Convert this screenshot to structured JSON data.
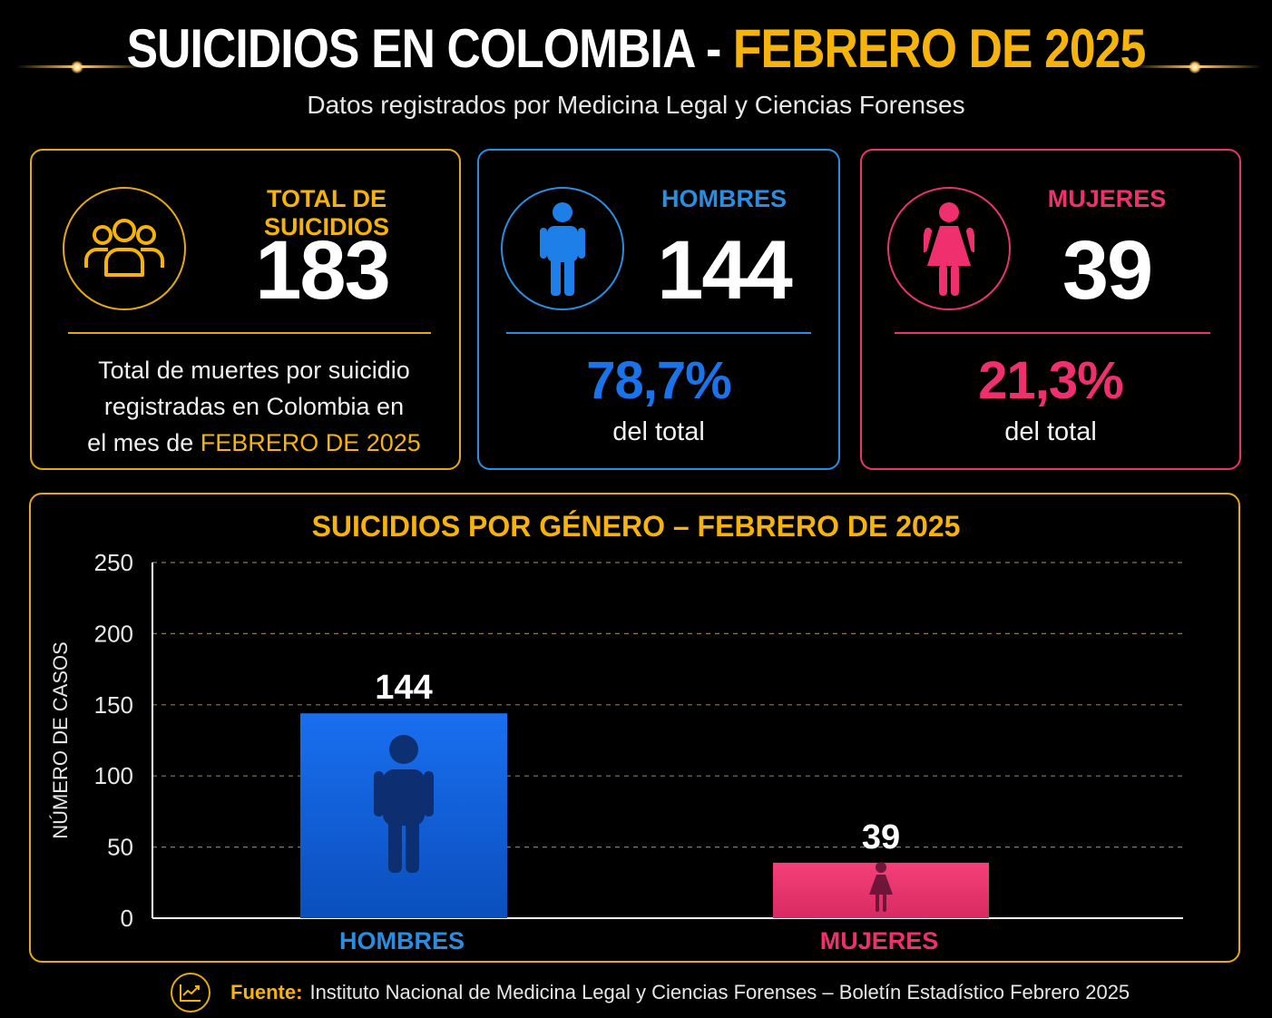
{
  "header": {
    "title_main": "SUICIDIOS EN COLOMBIA - ",
    "title_highlight": "FEBRERO DE 2025",
    "subtitle": "Datos registrados por Medicina Legal y Ciencias Forenses"
  },
  "cards": {
    "total": {
      "label": "TOTAL DE SUICIDIOS",
      "value": "183",
      "desc_line1": "Total de muertes por suicidio",
      "desc_line2": "registradas en Colombia en",
      "desc_line3_prefix": "el mes de ",
      "desc_line3_highlight": "FEBRERO DE 2025",
      "icon": "group-people-icon"
    },
    "men": {
      "label": "HOMBRES",
      "value": "144",
      "percent": "78,7%",
      "of_total": "del total",
      "icon": "man-icon"
    },
    "women": {
      "label": "MUJERES",
      "value": "39",
      "percent": "21,3%",
      "of_total": "del total",
      "icon": "woman-icon"
    }
  },
  "chart_data": {
    "type": "bar",
    "title": "SUICIDIOS POR GÉNERO – FEBRERO DE 2025",
    "categories": [
      "HOMBRES",
      "MUJERES"
    ],
    "values": [
      144,
      39
    ],
    "data_labels": [
      "144",
      "39"
    ],
    "ylabel": "NÚMERO DE CASOS",
    "xlabel": "",
    "ylim": [
      0,
      250
    ],
    "yticks": [
      0,
      50,
      100,
      150,
      200,
      250
    ],
    "grid": true,
    "colors": [
      "#1466e0",
      "#f0306e"
    ]
  },
  "footer": {
    "label": "Fuente:",
    "text": "Instituto Nacional de Medicina Legal y Ciencias Forenses – Boletín Estadístico Febrero 2025",
    "icon": "chart-growth-icon"
  },
  "colors": {
    "gold": "#f5b30b",
    "blue": "#1a73e8",
    "pink": "#f0306e",
    "background": "#000000"
  }
}
